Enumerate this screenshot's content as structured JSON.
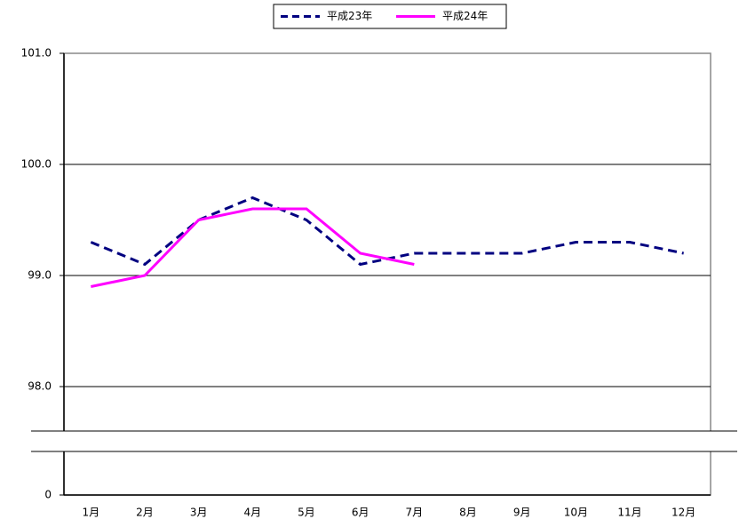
{
  "chart_data": {
    "type": "line",
    "categories": [
      "1月",
      "2月",
      "3月",
      "4月",
      "5月",
      "6月",
      "7月",
      "8月",
      "9月",
      "10月",
      "11月",
      "12月"
    ],
    "series": [
      {
        "name": "平成23年",
        "color": "#000080",
        "dash": true,
        "values": [
          99.3,
          99.1,
          99.5,
          99.7,
          99.5,
          99.1,
          99.2,
          99.2,
          99.2,
          99.3,
          99.3,
          99.2
        ]
      },
      {
        "name": "平成24年",
        "color": "#ff00ff",
        "dash": false,
        "values": [
          98.9,
          99.0,
          99.5,
          99.6,
          99.6,
          99.2,
          99.1,
          null,
          null,
          null,
          null,
          null
        ]
      }
    ],
    "ylim": [
      0,
      101
    ],
    "y_break": [
      0,
      97.6
    ],
    "yticks": [
      0,
      {
        "value": 98,
        "label": "98.0"
      },
      {
        "value": 99,
        "label": "99.0"
      },
      {
        "value": 100,
        "label": "100.0"
      },
      {
        "value": 101,
        "label": "101.0"
      }
    ],
    "grid": true,
    "legend": "top"
  }
}
